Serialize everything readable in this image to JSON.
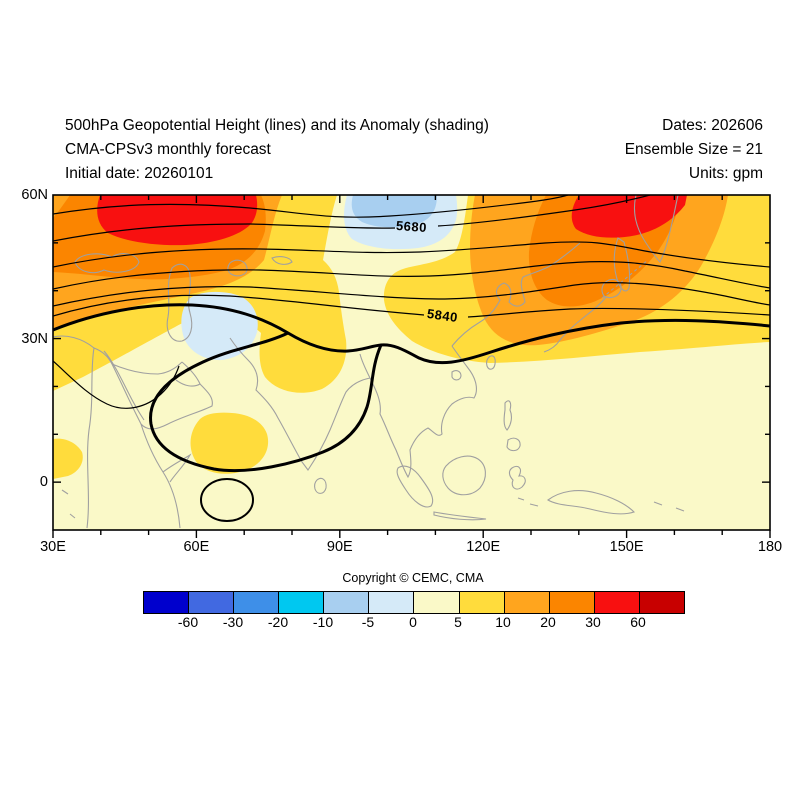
{
  "header": {
    "title_line1": "500hPa Geopotential Height (lines) and its Anomaly (shading)",
    "title_line2": "CMA-CPSv3 monthly forecast",
    "title_line3": "Initial date: 20260101",
    "dates_label": "Dates: 202606",
    "ensemble_label": "Ensemble Size = 21",
    "units_label": "Units: gpm"
  },
  "footer": {
    "copyright": "Copyright © CEMC, CMA"
  },
  "chart_data": {
    "type": "heatmap",
    "subtype": "filled-contour-map-with-height-lines",
    "title": "500hPa Geopotential Height (lines) and its Anomaly (shading)",
    "model": "CMA-CPSv3 monthly forecast",
    "initial_date": "20260101",
    "valid_dates": "202606",
    "ensemble_size": 21,
    "units": "gpm",
    "map_extent": {
      "lon_min": 30,
      "lon_max": 180,
      "lat_min": -10,
      "lat_max": 60
    },
    "x_ticks": [
      {
        "label": "30E",
        "lon": 30
      },
      {
        "label": "60E",
        "lon": 60
      },
      {
        "label": "90E",
        "lon": 90
      },
      {
        "label": "120E",
        "lon": 120
      },
      {
        "label": "150E",
        "lon": 150
      },
      {
        "label": "180",
        "lon": 180
      }
    ],
    "y_ticks": [
      {
        "label": "60N",
        "lat": 60
      },
      {
        "label": "30N",
        "lat": 30
      },
      {
        "label": "0",
        "lat": 0
      }
    ],
    "minor_tick_interval_deg": 10,
    "contour_levels_visible": [
      5640,
      5680,
      5720,
      5760,
      5800,
      5840,
      5880,
      5920
    ],
    "thick_contour_level": 5880,
    "contour_labels": [
      "5680",
      "5840"
    ],
    "colorbar": {
      "tick_labels": [
        "-60",
        "-30",
        "-20",
        "-10",
        "-5",
        "0",
        "5",
        "10",
        "20",
        "30",
        "60"
      ],
      "colors": [
        "#0000CD",
        "#4169E1",
        "#3E8FE8",
        "#00C8F0",
        "#A8CFF0",
        "#D5EAF8",
        "#FAF9C8",
        "#FFDC3C",
        "#FFA51E",
        "#FB8500",
        "#F81010",
        "#C80000"
      ]
    },
    "anomaly_features": [
      {
        "region": "northwest ~50E 55N",
        "sign": "positive",
        "peak_band_gpm": "30 to 60"
      },
      {
        "region": "northeast ~135E 55N",
        "sign": "positive",
        "peak_band_gpm": "30 to 60"
      },
      {
        "region": "north-middle ~105E 55N",
        "sign": "negative",
        "peak_band_gpm": "-5 to -10"
      },
      {
        "region": "west-middle ~62E 32N",
        "sign": "negative",
        "peak_band_gpm": "-5 to 0"
      },
      {
        "region": "south half tropics",
        "sign": "weak positive",
        "peak_band_gpm": "0 to 10"
      }
    ]
  }
}
